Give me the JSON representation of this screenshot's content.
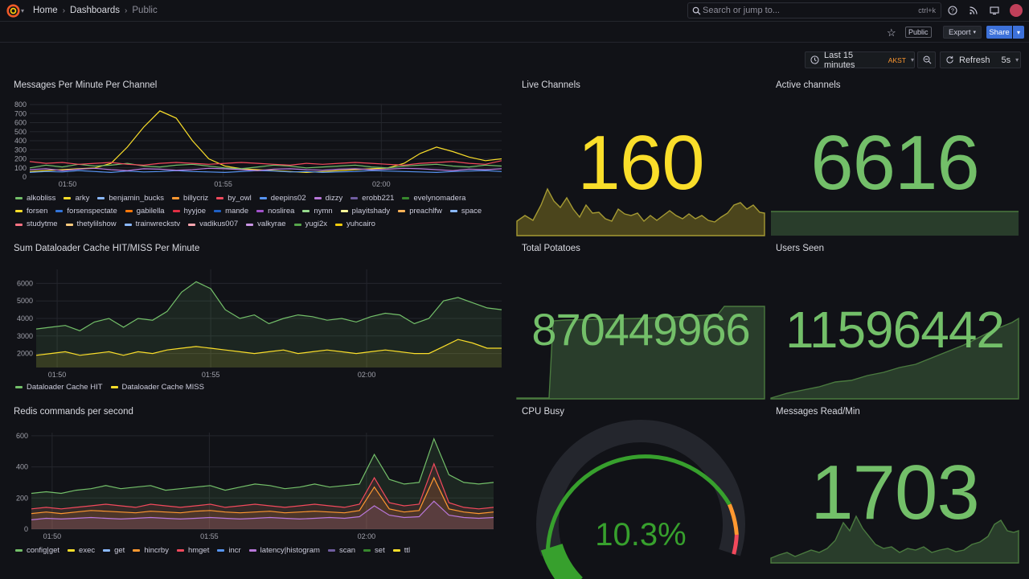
{
  "nav": {
    "breadcrumbs": [
      "Home",
      "Dashboards",
      "Public"
    ],
    "search_placeholder": "Search or jump to...",
    "search_shortcut": "ctrl+k"
  },
  "toolbar": {
    "public_badge": "Public",
    "export_label": "Export",
    "share_label": "Share",
    "time_range": "Last 15 minutes",
    "timezone": "AKST",
    "refresh_label": "Refresh",
    "refresh_interval": "5s"
  },
  "colors": {
    "background": "#111217",
    "green": "#73bf69",
    "yellow": "#fade2a",
    "orange": "#ff9830",
    "red": "#f2495c",
    "blue": "#5794f2",
    "purple": "#b877d9"
  },
  "panels": {
    "messages": {
      "title": "Messages Per Minute Per Channel",
      "legend": [
        {
          "name": "alkobliss",
          "color": "#73bf69"
        },
        {
          "name": "arky",
          "color": "#fade2a"
        },
        {
          "name": "benjamin_bucks",
          "color": "#8ab8ff"
        },
        {
          "name": "billycriz",
          "color": "#ff9830"
        },
        {
          "name": "by_owl",
          "color": "#f2495c"
        },
        {
          "name": "deepins02",
          "color": "#5794f2"
        },
        {
          "name": "dizzy",
          "color": "#b877d9"
        },
        {
          "name": "erobb221",
          "color": "#705da0"
        },
        {
          "name": "evelynomadera",
          "color": "#37872d"
        },
        {
          "name": "forsen",
          "color": "#fade2a"
        },
        {
          "name": "forsenspectate",
          "color": "#3274d9"
        },
        {
          "name": "gabilella",
          "color": "#ff780a"
        },
        {
          "name": "hyyjoe",
          "color": "#e02f44"
        },
        {
          "name": "mande",
          "color": "#1f60c4"
        },
        {
          "name": "noslirea",
          "color": "#a352cc"
        },
        {
          "name": "nymn",
          "color": "#96d98d"
        },
        {
          "name": "playitshady",
          "color": "#fff899"
        },
        {
          "name": "preachlfw",
          "color": "#ffb357"
        },
        {
          "name": "space",
          "color": "#8ab8ff"
        },
        {
          "name": "studytme",
          "color": "#ff7383"
        },
        {
          "name": "thetylilshow",
          "color": "#ffcb7d"
        },
        {
          "name": "trainwreckstv",
          "color": "#8ab8ff"
        },
        {
          "name": "vadikus007",
          "color": "#ffa6b0"
        },
        {
          "name": "valkyrae",
          "color": "#ca95e5"
        },
        {
          "name": "yugi2x",
          "color": "#56a64b"
        },
        {
          "name": "yuhcairo",
          "color": "#f2cc0c"
        }
      ]
    },
    "dataloader": {
      "title": "Sum Dataloader Cache HIT/MISS Per Minute",
      "legend": [
        {
          "name": "Dataloader Cache HIT",
          "color": "#73bf69"
        },
        {
          "name": "Dataloader Cache MISS",
          "color": "#fade2a"
        }
      ]
    },
    "redis": {
      "title": "Redis commands per second",
      "legend": [
        {
          "name": "config|get",
          "color": "#73bf69"
        },
        {
          "name": "exec",
          "color": "#fade2a"
        },
        {
          "name": "get",
          "color": "#8ab8ff"
        },
        {
          "name": "hincrby",
          "color": "#ff9830"
        },
        {
          "name": "hmget",
          "color": "#f2495c"
        },
        {
          "name": "incr",
          "color": "#5794f2"
        },
        {
          "name": "latency|histogram",
          "color": "#b877d9"
        },
        {
          "name": "scan",
          "color": "#705da0"
        },
        {
          "name": "set",
          "color": "#37872d"
        },
        {
          "name": "ttl",
          "color": "#fade2a"
        }
      ]
    },
    "live_channels": {
      "title": "Live Channels",
      "value": "160",
      "color": "#fade2a"
    },
    "active_channels": {
      "title": "Active channels",
      "value": "6616",
      "color": "#73bf69"
    },
    "total_potatoes": {
      "title": "Total Potatoes",
      "value": "870449966",
      "color": "#73bf69"
    },
    "users_seen": {
      "title": "Users Seen",
      "value": "11596442",
      "color": "#73bf69"
    },
    "cpu_busy": {
      "title": "CPU Busy",
      "value": "10.3%",
      "percent": 10.3,
      "color": "#37a02d"
    },
    "messages_read": {
      "title": "Messages Read/Min",
      "value": "1703",
      "color": "#73bf69"
    }
  },
  "chart_data": [
    {
      "type": "line",
      "title": "Messages Per Minute Per Channel",
      "x_ticks": [
        "01:50",
        "01:55",
        "02:00"
      ],
      "y_ticks": [
        0,
        100,
        200,
        300,
        400,
        500,
        600,
        700,
        800
      ],
      "ylim": [
        0,
        800
      ],
      "series": [
        {
          "name": "forsen",
          "values": [
            60,
            70,
            80,
            90,
            100,
            150,
            330,
            550,
            730,
            650,
            400,
            200,
            120,
            90,
            80,
            70,
            60,
            50,
            60,
            70,
            80,
            90,
            100,
            150,
            260,
            330,
            280,
            220,
            180,
            200
          ]
        },
        {
          "name": "alkobliss",
          "values": [
            100,
            130,
            110,
            140,
            120,
            130,
            150,
            120,
            110,
            130,
            140,
            120,
            100,
            90,
            110,
            130,
            120,
            100,
            110,
            120,
            130,
            110,
            100,
            120,
            130,
            140,
            120,
            110,
            130,
            120
          ]
        },
        {
          "name": "by_owl",
          "values": [
            170,
            150,
            160,
            140,
            150,
            160,
            140,
            130,
            150,
            160,
            150,
            140,
            150,
            160,
            150,
            140,
            130,
            150,
            140,
            150,
            160,
            150,
            140,
            130,
            150,
            160,
            170,
            150,
            140,
            180
          ]
        },
        {
          "name": "deepins02",
          "values": [
            50,
            60,
            55,
            70,
            60,
            50,
            65,
            55,
            60,
            70,
            60,
            55,
            50,
            60,
            70,
            65,
            55,
            60,
            50,
            55,
            60,
            70,
            65,
            60,
            55,
            50,
            60,
            65,
            70,
            60
          ]
        },
        {
          "name": "dizzy",
          "values": [
            80,
            90,
            70,
            85,
            95,
            80,
            70,
            90,
            85,
            75,
            80,
            95,
            90,
            80,
            70,
            85,
            90,
            80,
            75,
            85,
            90,
            80,
            85,
            95,
            90,
            80,
            70,
            85,
            80,
            90
          ]
        }
      ]
    },
    {
      "type": "line",
      "title": "Sum Dataloader Cache HIT/MISS Per Minute",
      "x_ticks": [
        "01:50",
        "01:55",
        "02:00"
      ],
      "y_ticks": [
        2000,
        3000,
        4000,
        5000,
        6000
      ],
      "ylim": [
        1200,
        6800
      ],
      "series": [
        {
          "name": "Dataloader Cache HIT",
          "values": [
            3400,
            3500,
            3600,
            3300,
            3800,
            4000,
            3500,
            4000,
            3900,
            4400,
            5500,
            6100,
            5700,
            4500,
            4000,
            4200,
            3700,
            4000,
            4200,
            4100,
            3900,
            4000,
            3800,
            4100,
            4300,
            4200,
            3700,
            4000,
            5000,
            5200,
            4900,
            4600,
            4500
          ]
        },
        {
          "name": "Dataloader Cache MISS",
          "values": [
            1900,
            2000,
            2100,
            1900,
            2000,
            2100,
            1900,
            2100,
            2000,
            2200,
            2300,
            2400,
            2300,
            2200,
            2100,
            2000,
            2100,
            2200,
            2000,
            2100,
            2200,
            2100,
            2000,
            2100,
            2200,
            2100,
            2000,
            2000,
            2400,
            2800,
            2600,
            2300,
            2300
          ]
        }
      ]
    },
    {
      "type": "area",
      "title": "Redis commands per second",
      "x_ticks": [
        "01:50",
        "01:55",
        "02:00"
      ],
      "y_ticks": [
        0,
        200,
        400,
        600
      ],
      "ylim": [
        0,
        620
      ],
      "series": [
        {
          "name": "config|get",
          "values": [
            230,
            240,
            230,
            250,
            260,
            280,
            260,
            270,
            280,
            250,
            260,
            270,
            280,
            250,
            270,
            290,
            280,
            260,
            270,
            290,
            270,
            280,
            290,
            480,
            320,
            290,
            300,
            580,
            350,
            300,
            290,
            300
          ]
        },
        {
          "name": "hmget",
          "values": [
            130,
            140,
            130,
            140,
            150,
            160,
            150,
            140,
            160,
            150,
            140,
            150,
            160,
            140,
            150,
            160,
            150,
            140,
            150,
            160,
            150,
            140,
            160,
            330,
            170,
            150,
            160,
            420,
            170,
            140,
            130,
            140
          ]
        },
        {
          "name": "hincrby",
          "values": [
            100,
            110,
            100,
            110,
            120,
            115,
            110,
            105,
            115,
            110,
            105,
            115,
            120,
            110,
            105,
            110,
            115,
            105,
            110,
            115,
            110,
            105,
            120,
            270,
            130,
            110,
            120,
            330,
            130,
            110,
            100,
            110
          ]
        },
        {
          "name": "latency|histogram",
          "values": [
            60,
            70,
            65,
            70,
            75,
            70,
            65,
            70,
            75,
            70,
            65,
            70,
            75,
            70,
            65,
            70,
            75,
            70,
            65,
            70,
            75,
            70,
            80,
            150,
            90,
            75,
            80,
            180,
            90,
            75,
            70,
            75
          ]
        }
      ]
    }
  ]
}
